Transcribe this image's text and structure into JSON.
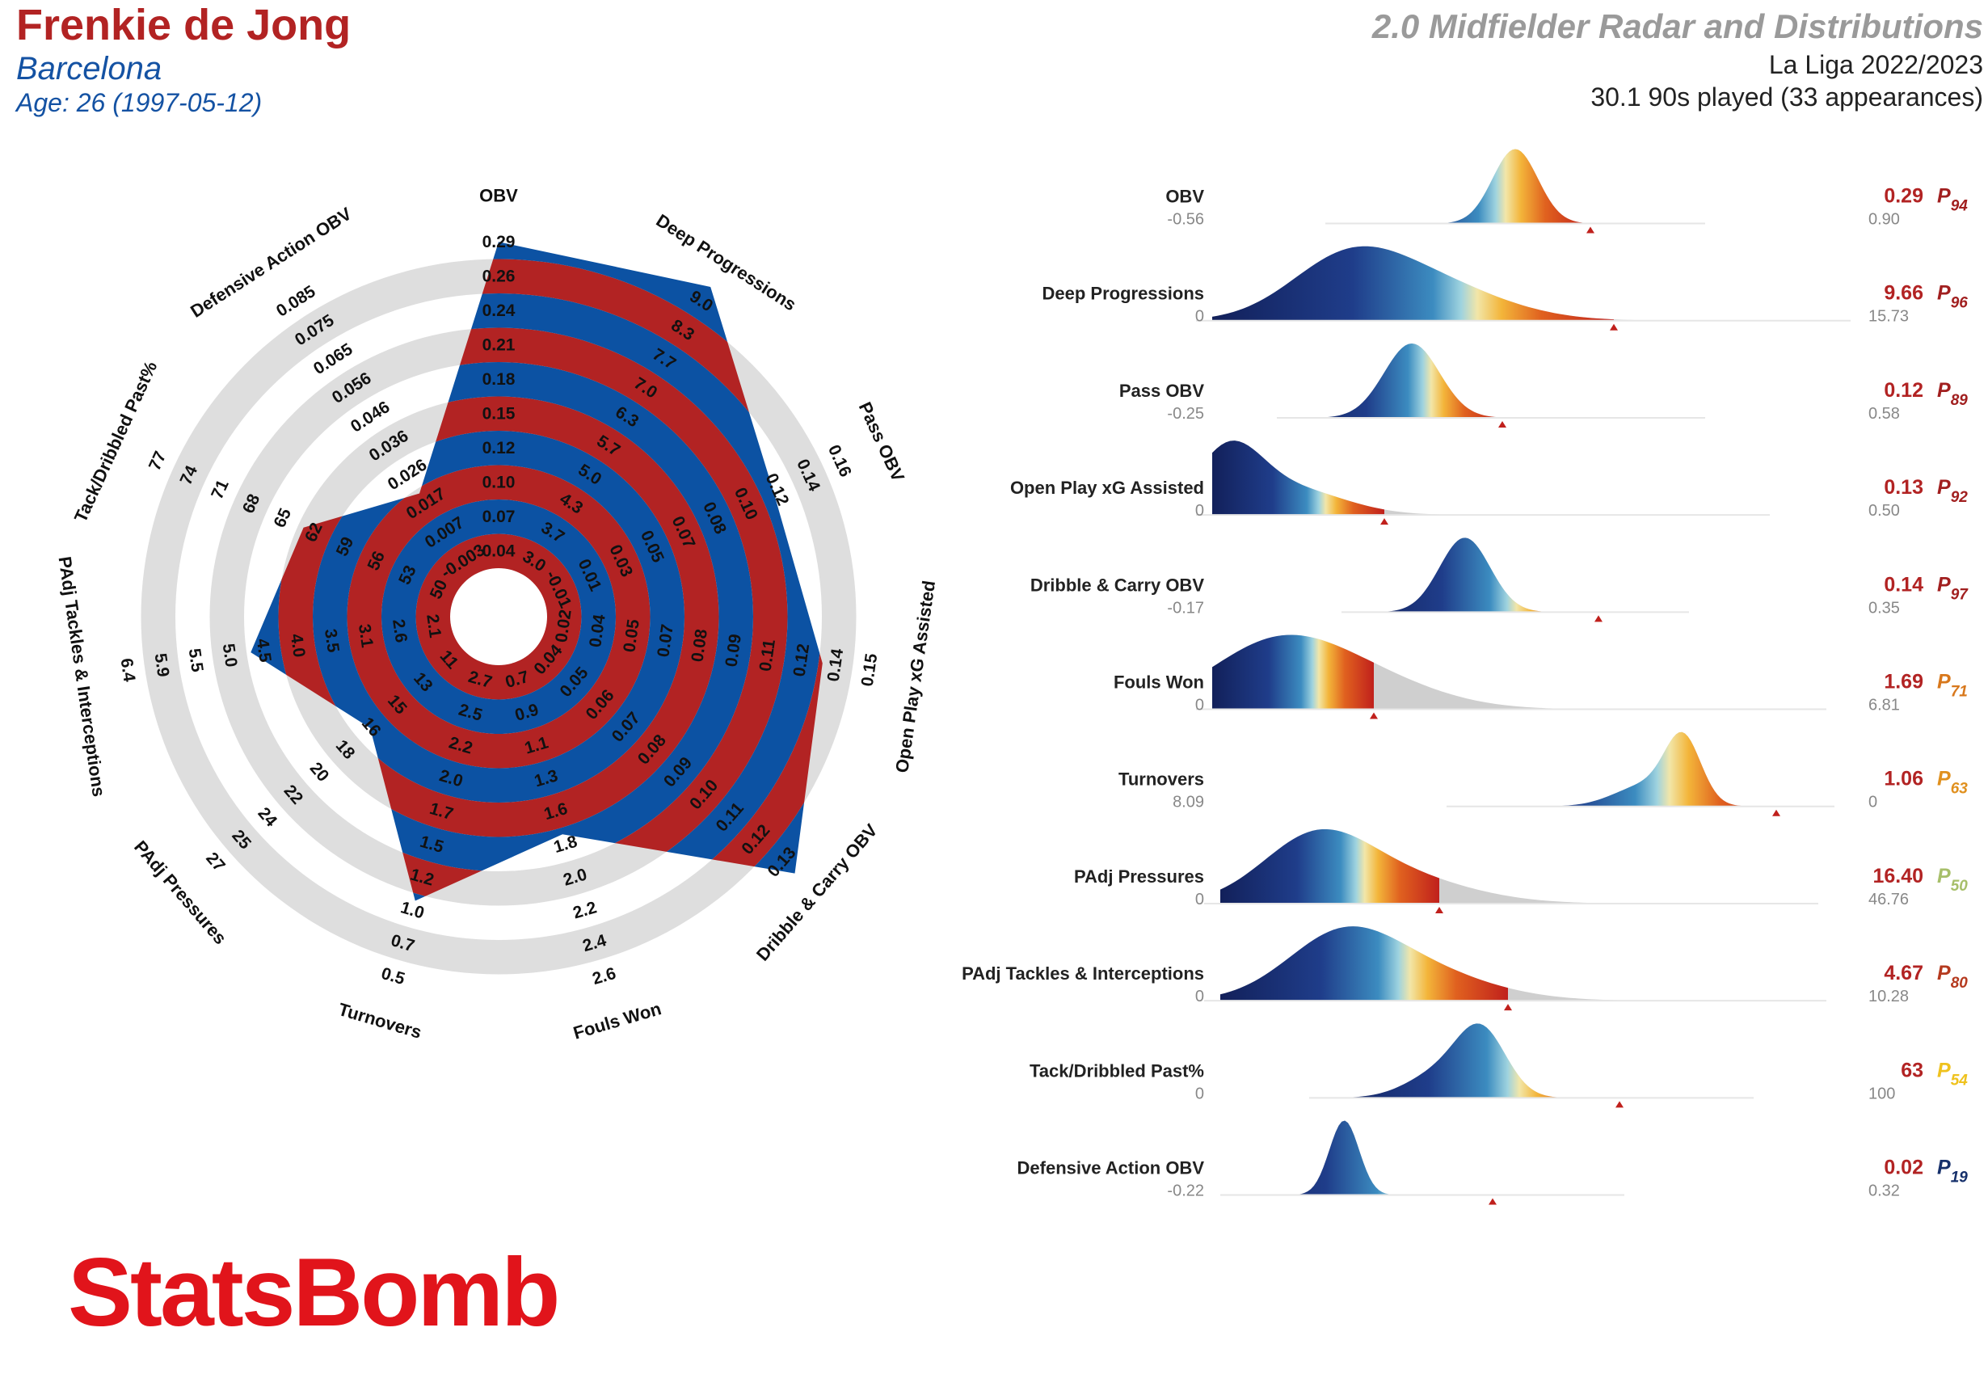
{
  "header": {
    "player": "Frenkie de Jong",
    "team": "Barcelona",
    "age": "Age: 26 (1997-05-12)",
    "title": "2.0 Midfielder Radar and Distributions",
    "league": "La Liga 2022/2023",
    "played": "30.1 90s played (33 appearances)"
  },
  "logo": {
    "text": "StatsBomb",
    "color": "#e1141b"
  },
  "colors": {
    "red": "#b22323",
    "blue": "#0c52a3",
    "ring": "#dedede",
    "dist_grey": "#cfcfcf"
  },
  "chart_data": [
    {
      "type": "radar",
      "ring_fill": {
        "player": "#b22323",
        "league": "#0c52a3"
      },
      "axes": [
        {
          "label": "OBV",
          "ticks": [
            "0.04",
            "0.07",
            "0.10",
            "0.12",
            "0.15",
            "0.18",
            "0.21",
            "0.24",
            "0.26",
            "0.29"
          ],
          "value": 0.29
        },
        {
          "label": "Deep Progressions",
          "ticks": [
            "3.0",
            "3.7",
            "4.3",
            "5.0",
            "5.7",
            "6.3",
            "7.0",
            "7.7",
            "8.3",
            "9.0"
          ],
          "value": 9.66
        },
        {
          "label": "Pass OBV",
          "ticks": [
            "-0.01",
            "0.01",
            "0.03",
            "0.05",
            "0.07",
            "0.08",
            "0.10",
            "0.12",
            "0.14",
            "0.16"
          ],
          "value": 0.12
        },
        {
          "label": "Open Play xG Assisted",
          "ticks": [
            "0.02",
            "0.04",
            "0.05",
            "0.07",
            "0.08",
            "0.09",
            "0.11",
            "0.12",
            "0.14",
            "0.15"
          ],
          "value": 0.13
        },
        {
          "label": "Dribble & Carry OBV",
          "ticks": [
            "0.04",
            "0.05",
            "0.06",
            "0.07",
            "0.08",
            "0.09",
            "0.10",
            "0.11",
            "0.12",
            "0.13"
          ],
          "value": 0.14
        },
        {
          "label": "Fouls Won",
          "ticks": [
            "0.7",
            "0.9",
            "1.1",
            "1.3",
            "1.6",
            "1.8",
            "2.0",
            "2.2",
            "2.4",
            "2.6"
          ],
          "value": 1.69
        },
        {
          "label": "Turnovers",
          "ticks": [
            "2.7",
            "2.5",
            "2.2",
            "2.0",
            "1.7",
            "1.5",
            "1.2",
            "1.0",
            "0.7",
            "0.5"
          ],
          "value": 1.06
        },
        {
          "label": "PAdj Pressures",
          "ticks": [
            "11",
            "13",
            "15",
            "16",
            "18",
            "20",
            "22",
            "24",
            "25",
            "27"
          ],
          "value": 16.4
        },
        {
          "label": "PAdj Tackles & Interceptions",
          "ticks": [
            "2.1",
            "2.6",
            "3.1",
            "3.5",
            "4.0",
            "4.5",
            "5.0",
            "5.5",
            "5.9",
            "6.4"
          ],
          "value": 4.67
        },
        {
          "label": "Tack/Dribbled Past%",
          "ticks": [
            "50",
            "53",
            "56",
            "59",
            "62",
            "65",
            "68",
            "71",
            "74",
            "77"
          ],
          "value": 63
        },
        {
          "label": "Defensive Action OBV",
          "ticks": [
            "-0.003",
            "0.007",
            "0.017",
            "0.026",
            "0.036",
            "0.046",
            "0.056",
            "0.065",
            "0.075",
            "0.085"
          ],
          "value": 0.02
        }
      ]
    },
    {
      "type": "area",
      "rows": [
        {
          "label": "OBV",
          "min": "-0.56",
          "max": "0.90",
          "value": "0.29",
          "pct": "94",
          "pct_color": "#a11f1f"
        },
        {
          "label": "Deep Progressions",
          "min": "0",
          "max": "15.73",
          "value": "9.66",
          "pct": "96",
          "pct_color": "#a11f1f"
        },
        {
          "label": "Pass OBV",
          "min": "-0.25",
          "max": "0.58",
          "value": "0.12",
          "pct": "89",
          "pct_color": "#a11f1f"
        },
        {
          "label": "Open Play xG Assisted",
          "min": "0",
          "max": "0.50",
          "value": "0.13",
          "pct": "92",
          "pct_color": "#a11f1f"
        },
        {
          "label": "Dribble & Carry OBV",
          "min": "-0.17",
          "max": "0.35",
          "value": "0.14",
          "pct": "97",
          "pct_color": "#a11f1f"
        },
        {
          "label": "Fouls Won",
          "min": "0",
          "max": "6.81",
          "value": "1.69",
          "pct": "71",
          "pct_color": "#d8781c"
        },
        {
          "label": "Turnovers",
          "min": "8.09",
          "max": "0",
          "value": "1.06",
          "pct": "63",
          "pct_color": "#e0901e"
        },
        {
          "label": "PAdj Pressures",
          "min": "0",
          "max": "46.76",
          "value": "16.40",
          "pct": "50",
          "pct_color": "#a7bf6a"
        },
        {
          "label": "PAdj Tackles & Interceptions",
          "min": "0",
          "max": "10.28",
          "value": "4.67",
          "pct": "80",
          "pct_color": "#b53a1f"
        },
        {
          "label": "Tack/Dribbled Past%",
          "min": "0",
          "max": "100",
          "value": "63",
          "pct": "54",
          "pct_color": "#efc21e"
        },
        {
          "label": "Defensive Action OBV",
          "min": "-0.22",
          "max": "0.32",
          "value": "0.02",
          "pct": "19",
          "pct_color": "#16306b"
        }
      ]
    }
  ]
}
